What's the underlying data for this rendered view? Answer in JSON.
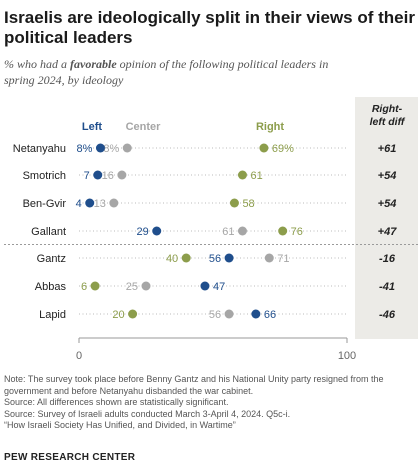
{
  "header": {
    "title": "Israelis are ideologically split in their views of their political leaders",
    "subtitle_pre": "% who had a ",
    "subtitle_bold": "favorable",
    "subtitle_post": " opinion of the following political leaders in spring 2024, by ideology"
  },
  "colors": {
    "left": "#1f4e8c",
    "center": "#a6a6a6",
    "right": "#8c9d4b",
    "diff_panel": "#ecebe7",
    "dots_line": "#bbbbbb"
  },
  "chart_data": {
    "type": "dot",
    "title": "Israelis are ideologically split in their views of their political leaders",
    "subtitle": "% who had a favorable opinion of the following political leaders in spring 2024, by ideology",
    "categories": [
      "Netanyahu",
      "Smotrich",
      "Ben-Gvir",
      "Gallant",
      "Gantz",
      "Abbas",
      "Lapid"
    ],
    "series": [
      {
        "name": "Left",
        "color": "#1f4e8c",
        "values": [
          8,
          7,
          4,
          29,
          56,
          47,
          66
        ],
        "labels": [
          "8%",
          "7",
          "4",
          "29",
          "56",
          "47",
          "66"
        ]
      },
      {
        "name": "Center",
        "color": "#a6a6a6",
        "values": [
          18,
          16,
          13,
          61,
          71,
          25,
          56
        ],
        "labels": [
          "18%",
          "16",
          "13",
          "61",
          "71",
          "25",
          "56"
        ]
      },
      {
        "name": "Right",
        "color": "#8c9d4b",
        "values": [
          69,
          61,
          58,
          76,
          40,
          6,
          20
        ],
        "labels": [
          "69%",
          "61",
          "58",
          "76",
          "40",
          "6",
          "20"
        ]
      }
    ],
    "diff_header": "Right-left diff",
    "diff_header_lines": [
      "Right-",
      "left diff"
    ],
    "diffs": [
      "+61",
      "+54",
      "+54",
      "+47",
      "-16",
      "-41",
      "-46"
    ],
    "xlim": [
      0,
      100
    ],
    "xticks": [
      "0",
      "100"
    ],
    "divider_after_index": 3
  },
  "notes": {
    "note1": "Note: The survey took place before Benny Gantz and his National Unity party resigned from the government and before Netanyahu disbanded the war cabinet.",
    "note2": "Source: All differences shown are statistically significant.",
    "source": "Source: Survey of Israeli adults conducted March 3-April 4, 2024. Q5c-i.",
    "report": "“How Israeli Society Has Unified, and Divided, in Wartime”"
  },
  "footer": {
    "org": "PEW RESEARCH CENTER"
  }
}
